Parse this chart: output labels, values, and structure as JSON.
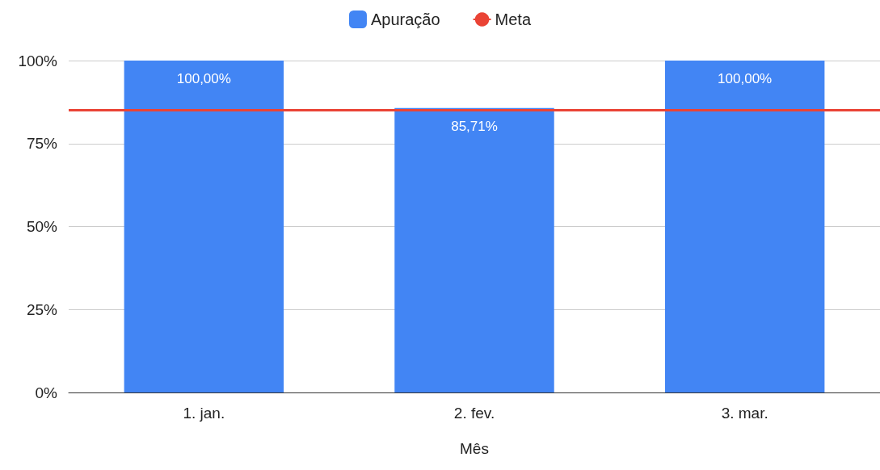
{
  "chart_data": {
    "type": "bar",
    "xlabel": "Mês",
    "categories": [
      "1. jan.",
      "2. fev.",
      "3. mar."
    ],
    "series": [
      {
        "name": "Apuração",
        "color": "#4285f4",
        "values": [
          100,
          85.71,
          100
        ],
        "value_labels": [
          "100,00%",
          "85,71%",
          "100,00%"
        ]
      }
    ],
    "ylim": [
      0,
      100
    ],
    "yticks": [
      {
        "value": 0,
        "label": "0%"
      },
      {
        "value": 25,
        "label": "25%"
      },
      {
        "value": 50,
        "label": "50%"
      },
      {
        "value": 75,
        "label": "75%"
      },
      {
        "value": 100,
        "label": "100%"
      }
    ],
    "ref_lines": [
      {
        "axis": "y",
        "value": 85,
        "label": "Meta",
        "color": "#ea4335"
      }
    ],
    "grid": "y",
    "legend": "top"
  }
}
